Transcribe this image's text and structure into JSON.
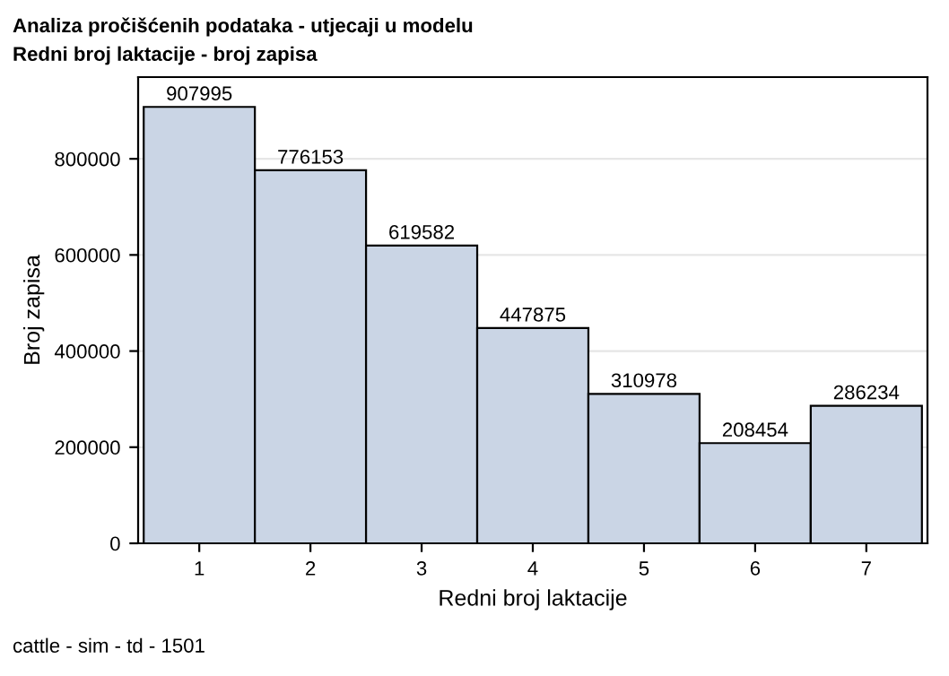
{
  "chart_data": {
    "type": "bar",
    "title": "Analiza pročišćenih podataka - utjecaji u modelu",
    "subtitle": "Redni broj laktacije - broj zapisa",
    "xlabel": "Redni broj laktacije",
    "ylabel": "Broj zapisa",
    "categories": [
      "1",
      "2",
      "3",
      "4",
      "5",
      "6",
      "7"
    ],
    "values": [
      907995,
      776153,
      619582,
      447875,
      310978,
      208454,
      286234
    ],
    "color": "#cad5e5",
    "data_labels": true,
    "ylim": [
      0,
      970000
    ],
    "yticks": [
      0,
      200000,
      400000,
      600000,
      800000
    ],
    "grid": "y",
    "annotations": [
      "cattle - sim - td - 1501"
    ]
  }
}
